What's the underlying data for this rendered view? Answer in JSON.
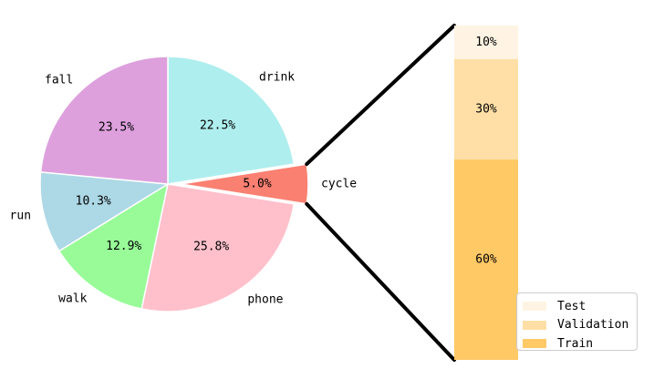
{
  "chart_data": [
    {
      "type": "pie",
      "title": "",
      "slices": [
        {
          "label": "drink",
          "value": 22.5,
          "value_label": "22.5%",
          "color": "#afeeee"
        },
        {
          "label": "cycle",
          "value": 5.0,
          "value_label": "5.0%",
          "color": "#fa8072",
          "exploded": true
        },
        {
          "label": "phone",
          "value": 25.8,
          "value_label": "25.8%",
          "color": "#ffc0cb"
        },
        {
          "label": "walk",
          "value": 12.9,
          "value_label": "12.9%",
          "color": "#98fb98"
        },
        {
          "label": "run",
          "value": 10.3,
          "value_label": "10.3%",
          "color": "#add8e6"
        },
        {
          "label": "fall",
          "value": 23.5,
          "value_label": "23.5%",
          "color": "#dda0dd"
        }
      ]
    },
    {
      "type": "bar",
      "stacked": true,
      "title": "",
      "series": [
        {
          "name": "Train",
          "value": 60,
          "value_label": "60%",
          "color": "#ffc966"
        },
        {
          "name": "Validation",
          "value": 30,
          "value_label": "30%",
          "color": "#ffdfa6"
        },
        {
          "name": "Test",
          "value": 10,
          "value_label": "10%",
          "color": "#fff4e3"
        }
      ],
      "legend": {
        "placement": "bottom-right",
        "order": [
          "Test",
          "Validation",
          "Train"
        ]
      }
    }
  ]
}
